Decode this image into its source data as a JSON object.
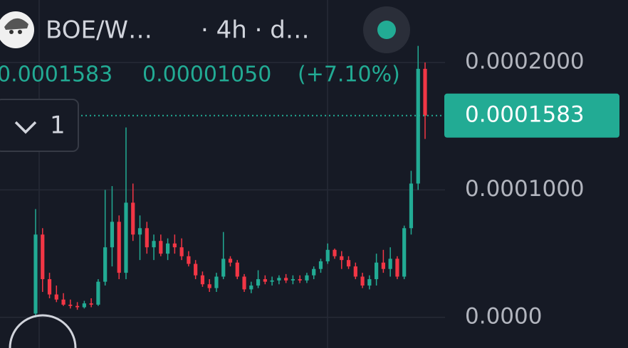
{
  "header": {
    "symbol": "BOE/W…",
    "interval": "· 4h · d…",
    "collapse_count": "1"
  },
  "chart_data": {
    "type": "candlestick",
    "last": "0.0001583",
    "change": "0.00001050",
    "change_pct": "(+7.10%)",
    "up_color": "#22ab94",
    "down_color": "#f23645",
    "current_price": {
      "value": 0.0001583,
      "label": "0.0001583"
    },
    "ylim": [
      -2.4e-05,
      0.000249
    ],
    "yticks": [
      {
        "value": 0,
        "label": "0.0000"
      },
      {
        "value": 0.0001,
        "label": "0.0001000"
      },
      {
        "value": 0.0002,
        "label": "0.0002000"
      }
    ],
    "grid": true,
    "open": [
      3e-06,
      6.5e-05,
      3e-05,
      1.8e-05,
      1.4e-05,
      1e-05,
      9e-06,
      8e-06,
      1.1e-05,
      1e-05,
      2.8e-05,
      5.5e-05,
      7.5e-05,
      3.5e-05,
      9e-05,
      6.5e-05,
      7e-05,
      5.5e-05,
      6e-05,
      5e-05,
      5.8e-05,
      5.5e-05,
      4.8e-05,
      4.2e-05,
      3.3e-05,
      2.6e-05,
      2.3e-05,
      3.2e-05,
      4.6e-05,
      4.3e-05,
      3.2e-05,
      2.2e-05,
      2.5e-05,
      3e-05,
      2.8e-05,
      2.9e-05,
      3.1e-05,
      2.9e-05,
      3e-05,
      2.9e-05,
      3.3e-05,
      3.8e-05,
      4.4e-05,
      5.3e-05,
      4.8e-05,
      4.5e-05,
      4e-05,
      3.2e-05,
      2.5e-05,
      3e-05,
      4.3e-05,
      3.8e-05,
      4.6e-05,
      3.2e-05,
      7e-05,
      0.000105,
      0.000195
    ],
    "high": [
      8.5e-05,
      7e-05,
      3.5e-05,
      2.5e-05,
      1.9e-05,
      1.4e-05,
      1.2e-05,
      1.3e-05,
      1.5e-05,
      3e-05,
      0.0001,
      0.000103,
      8e-05,
      0.000149,
      0.000105,
      8e-05,
      7.5e-05,
      6.5e-05,
      6.5e-05,
      6.2e-05,
      6.5e-05,
      6.2e-05,
      5.2e-05,
      4.5e-05,
      3.6e-05,
      3e-05,
      3.5e-05,
      6.7e-05,
      4.8e-05,
      4.5e-05,
      3.4e-05,
      2.8e-05,
      3.7e-05,
      3.3e-05,
      3.2e-05,
      3.3e-05,
      3.4e-05,
      3.3e-05,
      3.3e-05,
      3.5e-05,
      4e-05,
      4.6e-05,
      5.8e-05,
      5.4e-05,
      5.2e-05,
      4.8e-05,
      4.3e-05,
      3.5e-05,
      3.3e-05,
      5e-05,
      5.3e-05,
      5.5e-05,
      4.8e-05,
      7.2e-05,
      0.000115,
      0.000213,
      0.0002
    ],
    "low": [
      0.0,
      2e-05,
      1.5e-05,
      1.2e-05,
      9e-06,
      7e-06,
      6e-06,
      7e-06,
      8e-06,
      9e-06,
      2.5e-05,
      4e-05,
      3e-05,
      3e-05,
      6e-05,
      4.5e-05,
      5e-05,
      4.5e-05,
      4.8e-05,
      4.5e-05,
      5e-05,
      4.5e-05,
      4e-05,
      3e-05,
      2.4e-05,
      2e-05,
      2e-05,
      3e-05,
      4e-05,
      3e-05,
      2e-05,
      1.9e-05,
      2.3e-05,
      2.6e-05,
      2.5e-05,
      2.6e-05,
      2.7e-05,
      2.6e-05,
      2.7e-05,
      2.7e-05,
      3e-05,
      3.5e-05,
      4.2e-05,
      4.6e-05,
      3.8e-05,
      3.8e-05,
      3e-05,
      2.3e-05,
      2.2e-05,
      2.5e-05,
      3.5e-05,
      3.2e-05,
      3e-05,
      3e-05,
      6.5e-05,
      0.0001,
      0.00014
    ],
    "close": [
      6.5e-05,
      3e-05,
      1.8e-05,
      1.4e-05,
      1e-05,
      9e-06,
      8e-06,
      1.1e-05,
      1e-05,
      2.8e-05,
      5.5e-05,
      7.5e-05,
      3.5e-05,
      9e-05,
      6.5e-05,
      7e-05,
      5.5e-05,
      6e-05,
      5e-05,
      5.8e-05,
      5.5e-05,
      4.8e-05,
      4.2e-05,
      3.3e-05,
      2.6e-05,
      2.3e-05,
      3.2e-05,
      4.6e-05,
      4.3e-05,
      3.2e-05,
      2.2e-05,
      2.5e-05,
      3e-05,
      2.8e-05,
      2.9e-05,
      3.1e-05,
      2.9e-05,
      3e-05,
      2.9e-05,
      3.3e-05,
      3.8e-05,
      4.4e-05,
      5.3e-05,
      4.8e-05,
      4.5e-05,
      4e-05,
      3.2e-05,
      2.5e-05,
      3e-05,
      4.3e-05,
      3.8e-05,
      4.6e-05,
      3.2e-05,
      7e-05,
      0.000105,
      0.000195,
      0.0001583
    ]
  }
}
